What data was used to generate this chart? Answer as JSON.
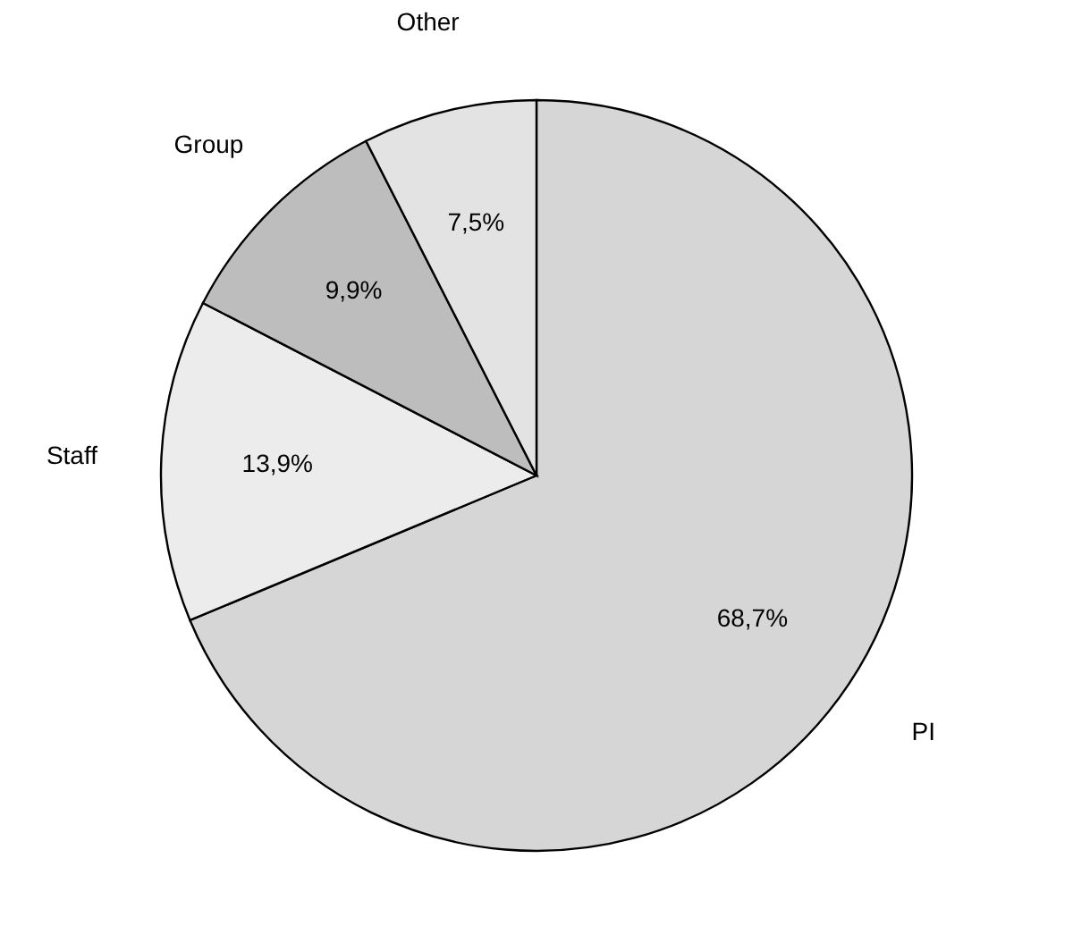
{
  "chart_data": {
    "type": "pie",
    "categories": [
      "PI",
      "Staff",
      "Group",
      "Other"
    ],
    "values": [
      68.7,
      13.9,
      9.9,
      7.5
    ],
    "colors": [
      "#d6d6d6",
      "#ececec",
      "#bdbdbd",
      "#e3e3e3"
    ],
    "value_labels": [
      "68,7%",
      "13,9%",
      "9,9%",
      "7,5%"
    ]
  }
}
